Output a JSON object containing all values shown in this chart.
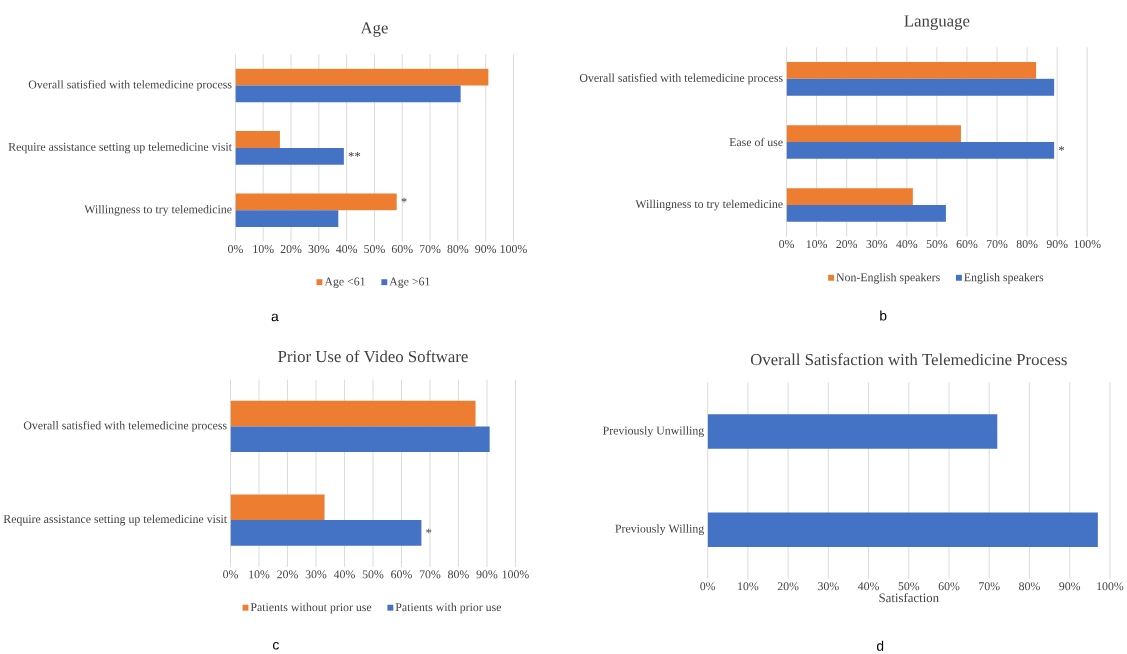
{
  "chart_data": [
    {
      "type": "bar",
      "orientation": "horizontal",
      "title": "Age",
      "categories": [
        "Overall satisfied with telemedicine process",
        "Require assistance setting up telemedicine visit",
        "Willingness to try telemedicine"
      ],
      "series": [
        {
          "name": "Age <61",
          "color": "#ed7d31",
          "values": [
            91,
            16,
            58
          ]
        },
        {
          "name": "Age >61",
          "color": "#4472c4",
          "values": [
            81,
            39,
            37
          ]
        }
      ],
      "xlim": [
        0,
        100
      ],
      "xticks": [
        {
          "value": 0,
          "label": "0%"
        },
        {
          "value": 10,
          "label": "10%"
        },
        {
          "value": 20,
          "label": "20%"
        },
        {
          "value": 30,
          "label": "30%"
        },
        {
          "value": 40,
          "label": "40%"
        },
        {
          "value": 50,
          "label": "50%"
        },
        {
          "value": 60,
          "label": "60%"
        },
        {
          "value": 70,
          "label": "70%"
        },
        {
          "value": 80,
          "label": "80%"
        },
        {
          "value": 90,
          "label": "90%"
        },
        {
          "value": 100,
          "label": "100%"
        }
      ],
      "grid": "x",
      "legend": "bottom",
      "annotations": [
        {
          "text": "**",
          "x": 39,
          "y": "Require assistance setting up telemedicine visit"
        },
        {
          "text": "*",
          "x": 58,
          "y": "Willingness to try telemedicine"
        },
        "a"
      ]
    },
    {
      "type": "bar",
      "orientation": "horizontal",
      "title": "Language",
      "categories": [
        "Overall satisfied with telemedicine process",
        "Ease of use",
        "Willingness to try telemedicine"
      ],
      "series": [
        {
          "name": "Non-English speakers",
          "color": "#ed7d31",
          "values": [
            83,
            58,
            42
          ]
        },
        {
          "name": "English speakers",
          "color": "#4472c4",
          "values": [
            89,
            89,
            53
          ]
        }
      ],
      "xlim": [
        0,
        100
      ],
      "xticks": [
        {
          "value": 0,
          "label": "0%"
        },
        {
          "value": 10,
          "label": "10%"
        },
        {
          "value": 20,
          "label": "20%"
        },
        {
          "value": 30,
          "label": "30%"
        },
        {
          "value": 40,
          "label": "40%"
        },
        {
          "value": 50,
          "label": "50%"
        },
        {
          "value": 60,
          "label": "60%"
        },
        {
          "value": 70,
          "label": "70%"
        },
        {
          "value": 80,
          "label": "80%"
        },
        {
          "value": 90,
          "label": "90%"
        },
        {
          "value": 100,
          "label": "100%"
        }
      ],
      "grid": "x",
      "legend": "bottom",
      "annotations": [
        {
          "text": "*",
          "x": 89,
          "y": "Ease of use"
        },
        "b"
      ]
    },
    {
      "type": "bar",
      "orientation": "horizontal",
      "title": "Prior Use of Video Software",
      "categories": [
        "Overall satisfied with telemedicine process",
        "Require assistance setting up telemedicine visit"
      ],
      "series": [
        {
          "name": "Patients without prior use",
          "color": "#ed7d31",
          "values": [
            86,
            33
          ]
        },
        {
          "name": "Patients with prior use",
          "color": "#4472c4",
          "values": [
            91,
            67
          ]
        }
      ],
      "xlim": [
        0,
        100
      ],
      "xticks": [
        {
          "value": 0,
          "label": "0%"
        },
        {
          "value": 10,
          "label": "10%"
        },
        {
          "value": 20,
          "label": "20%"
        },
        {
          "value": 30,
          "label": "30%"
        },
        {
          "value": 40,
          "label": "40%"
        },
        {
          "value": 50,
          "label": "50%"
        },
        {
          "value": 60,
          "label": "60%"
        },
        {
          "value": 70,
          "label": "70%"
        },
        {
          "value": 80,
          "label": "80%"
        },
        {
          "value": 90,
          "label": "90%"
        },
        {
          "value": 100,
          "label": "100%"
        }
      ],
      "grid": "x",
      "legend": "bottom",
      "annotations": [
        {
          "text": "*",
          "x": 67,
          "y": "Require assistance setting up telemedicine visit"
        },
        "c"
      ]
    },
    {
      "type": "bar",
      "orientation": "horizontal",
      "title": "Overall Satisfaction with Telemedicine Process",
      "xlabel": "Satisfaction",
      "categories": [
        "Previously Unwilling",
        "Previously Willing"
      ],
      "series": [
        {
          "color": "#4472c4",
          "values": [
            72,
            97
          ]
        }
      ],
      "xlim": [
        0,
        100
      ],
      "xticks": [
        {
          "value": 0,
          "label": "0%"
        },
        {
          "value": 10,
          "label": "10%"
        },
        {
          "value": 20,
          "label": "20%"
        },
        {
          "value": 30,
          "label": "30%"
        },
        {
          "value": 40,
          "label": "40%"
        },
        {
          "value": 50,
          "label": "50%"
        },
        {
          "value": 60,
          "label": "60%"
        },
        {
          "value": 70,
          "label": "70%"
        },
        {
          "value": 80,
          "label": "80%"
        },
        {
          "value": 90,
          "label": "90%"
        },
        {
          "value": 100,
          "label": "100%"
        }
      ],
      "grid": "x",
      "annotations": [
        "d"
      ]
    }
  ]
}
